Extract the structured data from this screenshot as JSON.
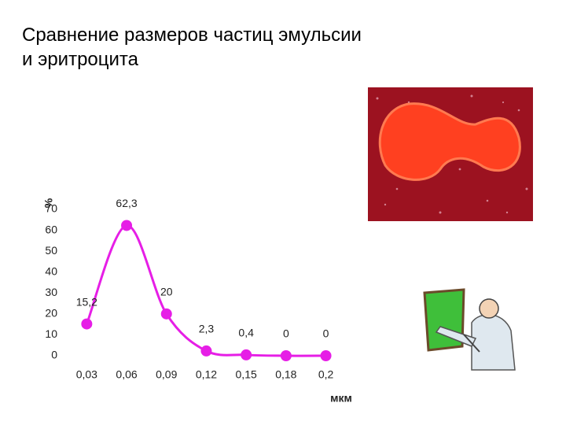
{
  "title_lines": [
    "Сравнение размеров частиц эмульсии",
    "и эритроцита"
  ],
  "chart_data": {
    "type": "line",
    "x_label": "мкм",
    "y_label": "%",
    "categories": [
      "0,03",
      "0,06",
      "0,09",
      "0,12",
      "0,15",
      "0,18",
      "0,2"
    ],
    "values": [
      15.2,
      62.3,
      20,
      2.3,
      0.4,
      0,
      0
    ],
    "value_labels": [
      "15,2",
      "62,3",
      "20",
      "2,3",
      "0,4",
      "0",
      "0"
    ],
    "color": "#e61ee6",
    "ylim": [
      0,
      70
    ],
    "yticks": [
      0,
      10,
      20,
      30,
      40,
      50,
      60,
      70
    ],
    "grid": false
  }
}
